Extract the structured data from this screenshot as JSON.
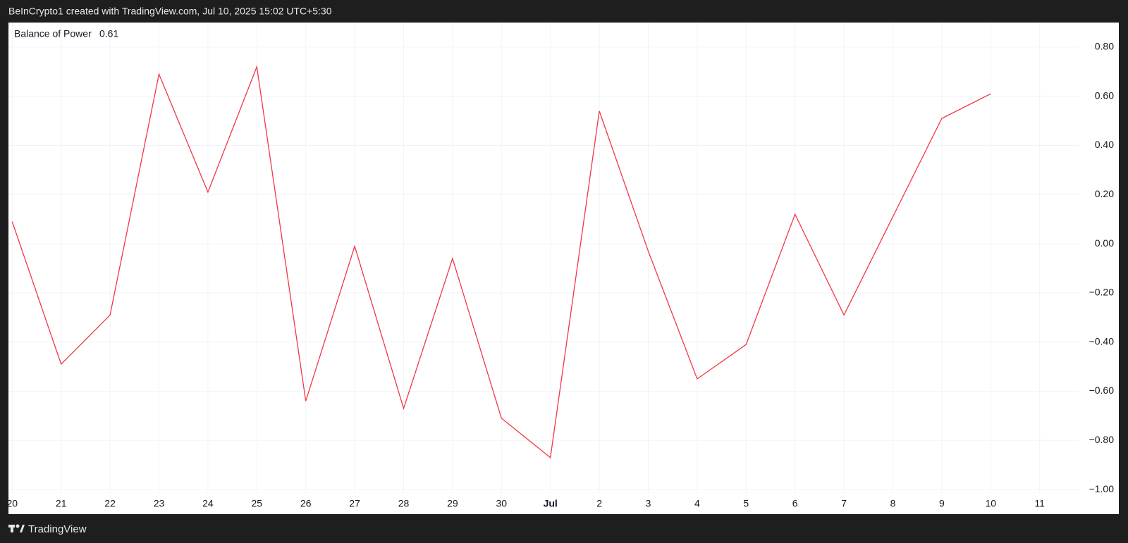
{
  "header": {
    "credit": "BeInCrypto1 created with TradingView.com, Jul 10, 2025 15:02 UTC+5:30"
  },
  "footer": {
    "brand": "TradingView"
  },
  "chart_data": {
    "type": "line",
    "categories": [
      "20",
      "21",
      "22",
      "23",
      "24",
      "25",
      "26",
      "27",
      "28",
      "29",
      "30",
      "Jul",
      "2",
      "3",
      "4",
      "5",
      "6",
      "7",
      "8",
      "9",
      "10",
      "11"
    ],
    "series": [
      {
        "name": "Balance of Power",
        "color": "#f23645",
        "values": [
          0.09,
          -0.49,
          -0.29,
          0.69,
          0.21,
          0.72,
          -0.64,
          -0.01,
          -0.67,
          -0.06,
          -0.71,
          -0.87,
          0.54,
          -0.03,
          -0.55,
          -0.41,
          0.12,
          -0.29,
          0.11,
          0.51,
          0.61,
          null
        ]
      }
    ],
    "ylim": [
      -1.1,
      0.9
    ],
    "yticks": [
      {
        "value": 0.8,
        "label": "0.80"
      },
      {
        "value": 0.6,
        "label": "0.60"
      },
      {
        "value": 0.4,
        "label": "0.40"
      },
      {
        "value": 0.2,
        "label": "0.20"
      },
      {
        "value": 0,
        "label": "0.00"
      },
      {
        "value": -0.2,
        "label": "−0.20"
      },
      {
        "value": -0.4,
        "label": "−0.40"
      },
      {
        "value": -0.6,
        "label": "−0.60"
      },
      {
        "value": -0.8,
        "label": "−0.80"
      },
      {
        "value": -1,
        "label": "−1.00"
      }
    ],
    "grid": true
  }
}
